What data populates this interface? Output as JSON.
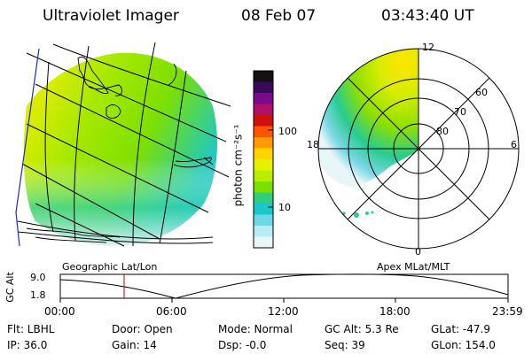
{
  "header": {
    "instrument": "Ultraviolet Imager",
    "date": "08 Feb 07",
    "time": "03:43:40 UT"
  },
  "colorbar": {
    "unit_label": "photon cm⁻²s⁻¹",
    "ticks": [
      "100",
      "10"
    ],
    "colors": [
      "#111111",
      "#3a0a5a",
      "#7a0a8a",
      "#b0106a",
      "#d01010",
      "#ff5500",
      "#ff9a00",
      "#ffd400",
      "#e8f000",
      "#b8ef00",
      "#7be000",
      "#30d07a",
      "#18c8c8",
      "#6ed8e8",
      "#b8ecf4",
      "#e8f6f8"
    ]
  },
  "polar_plot": {
    "labels": {
      "mlt_12": "12",
      "mlt_18": "18",
      "mlt_6": "6",
      "mlt_0": "0",
      "lat_60": "60",
      "lat_70": "70",
      "lat_80": "80"
    }
  },
  "map_labels": {
    "left": "Geographic Lat/Lon",
    "right": "Apex MLat/MLT"
  },
  "altitude_plot": {
    "ylabel": "GC Alt",
    "yticks": [
      "9.0",
      "1.8"
    ],
    "xticks": [
      "00:00",
      "06:00",
      "12:00",
      "18:00",
      "23:59"
    ]
  },
  "info": {
    "flt": "Flt: LBHL",
    "ip": "IP: 36.0",
    "door": "Door: Open",
    "gain": "Gain: 14",
    "mode": "Mode: Normal",
    "dsp": "Dsp:   -0.0",
    "gcalt": "GC Alt: 5.3 Re",
    "seq": "Seq: 39",
    "glat": "GLat: -47.9",
    "glon": "GLon: 154.0"
  }
}
